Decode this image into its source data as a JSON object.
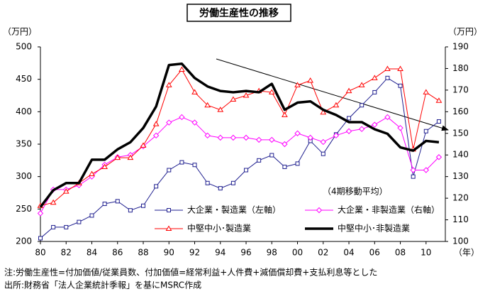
{
  "chart_data": {
    "type": "line",
    "title": "労働生産性の推移",
    "y_label": "（万円）",
    "y2_label": "（万円）",
    "x_label": "（年）",
    "annotation": "（4期移動平均）",
    "notes": [
      "注:労働生産性=付加価値/従業員数、付加価値=経常利益+人件費+減価償却費+支払利息等とした",
      "出所:財務省「法人企業統計季報」を基にMSRC作成"
    ],
    "x": [
      1980,
      1981,
      1982,
      1983,
      1984,
      1985,
      1986,
      1987,
      1988,
      1989,
      1990,
      1991,
      1992,
      1993,
      1994,
      1995,
      1996,
      1997,
      1998,
      1999,
      2000,
      2001,
      2002,
      2003,
      2004,
      2005,
      2006,
      2007,
      2008,
      2009,
      2010,
      2011
    ],
    "xlim": [
      1980,
      2011.5
    ],
    "xticks": [
      {
        "value": 1980,
        "label": "80"
      },
      {
        "value": 1982,
        "label": "82"
      },
      {
        "value": 1984,
        "label": "84"
      },
      {
        "value": 1986,
        "label": "86"
      },
      {
        "value": 1988,
        "label": "88"
      },
      {
        "value": 1990,
        "label": "90"
      },
      {
        "value": 1992,
        "label": "92"
      },
      {
        "value": 1994,
        "label": "94"
      },
      {
        "value": 1996,
        "label": "96"
      },
      {
        "value": 1998,
        "label": "98"
      },
      {
        "value": 2000,
        "label": "00"
      },
      {
        "value": 2002,
        "label": "02"
      },
      {
        "value": 2004,
        "label": "04"
      },
      {
        "value": 2006,
        "label": "06"
      },
      {
        "value": 2008,
        "label": "08"
      },
      {
        "value": 2010,
        "label": "10"
      }
    ],
    "ylim": [
      200,
      500
    ],
    "yticks": [
      200,
      250,
      300,
      350,
      400,
      450,
      500
    ],
    "y2lim": [
      100,
      190
    ],
    "y2ticks": [
      100,
      110,
      120,
      130,
      140,
      150,
      160,
      170,
      180,
      190
    ],
    "series": [
      {
        "name": "大企業・製造業（左軸）",
        "color": "#1f1f8f",
        "marker": "square",
        "axis": "y",
        "values": [
          205,
          222,
          222,
          230,
          240,
          258,
          262,
          248,
          255,
          285,
          310,
          322,
          318,
          290,
          282,
          290,
          310,
          325,
          333,
          315,
          320,
          355,
          335,
          365,
          390,
          410,
          430,
          452,
          440,
          300,
          370,
          385
        ]
      },
      {
        "name": "大企業・非製造業（右軸）",
        "color": "#ff00ff",
        "marker": "diamond",
        "axis": "y2",
        "values": [
          113,
          124,
          124,
          126,
          130,
          135.5,
          139,
          140,
          144,
          149,
          155,
          157.5,
          155,
          149,
          148,
          148,
          148,
          147,
          147,
          145,
          150,
          148,
          146,
          149,
          151,
          152,
          154,
          157.5,
          152.5,
          133,
          133,
          139
        ]
      },
      {
        "name": "中堅中小･製造業",
        "color": "#ff0000",
        "marker": "triangle",
        "axis": "y",
        "values": [
          255,
          260,
          277,
          290,
          304,
          315,
          329,
          329,
          348,
          381,
          441,
          465,
          430,
          410,
          403,
          419,
          425,
          432,
          430,
          395,
          441,
          448,
          399,
          410,
          432,
          441,
          452,
          466,
          466,
          342,
          430,
          417
        ]
      },
      {
        "name": "中堅中小･非製造業",
        "color": "#000000",
        "marker": "none",
        "width": 3.5,
        "axis": "y",
        "values": [
          253,
          279,
          290,
          290,
          326,
          326,
          342,
          353,
          375,
          408,
          472,
          474,
          452,
          439,
          432,
          430,
          432,
          430,
          443,
          403,
          414,
          416,
          403,
          395,
          384,
          384,
          373,
          366,
          345,
          340,
          355,
          353
        ]
      }
    ]
  }
}
